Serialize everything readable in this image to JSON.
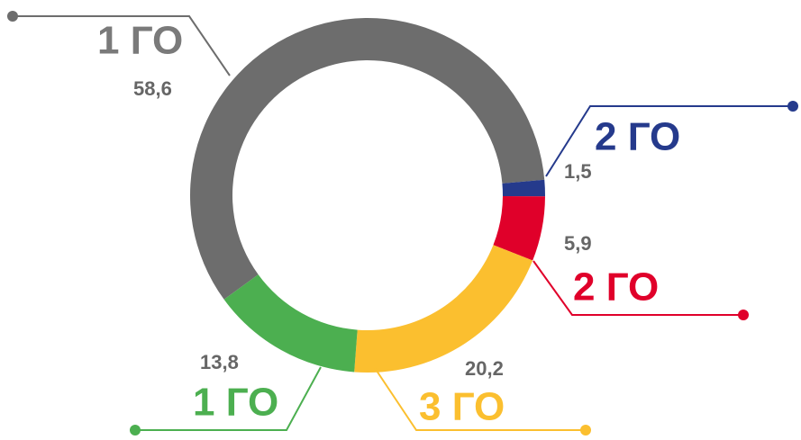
{
  "chart_data": {
    "type": "donut",
    "categories": [
      "1 ГО",
      "2 ГО",
      "2 ГО",
      "3 ГО",
      "1 ГО"
    ],
    "values": [
      58.6,
      1.5,
      5.9,
      20.2,
      13.8
    ],
    "value_labels": [
      "58,6",
      "1,5",
      "5,9",
      "20,2",
      "13,8"
    ],
    "colors": [
      "#6d6d6d",
      "#253a8c",
      "#e0002a",
      "#fbbf2f",
      "#4caf50"
    ]
  }
}
